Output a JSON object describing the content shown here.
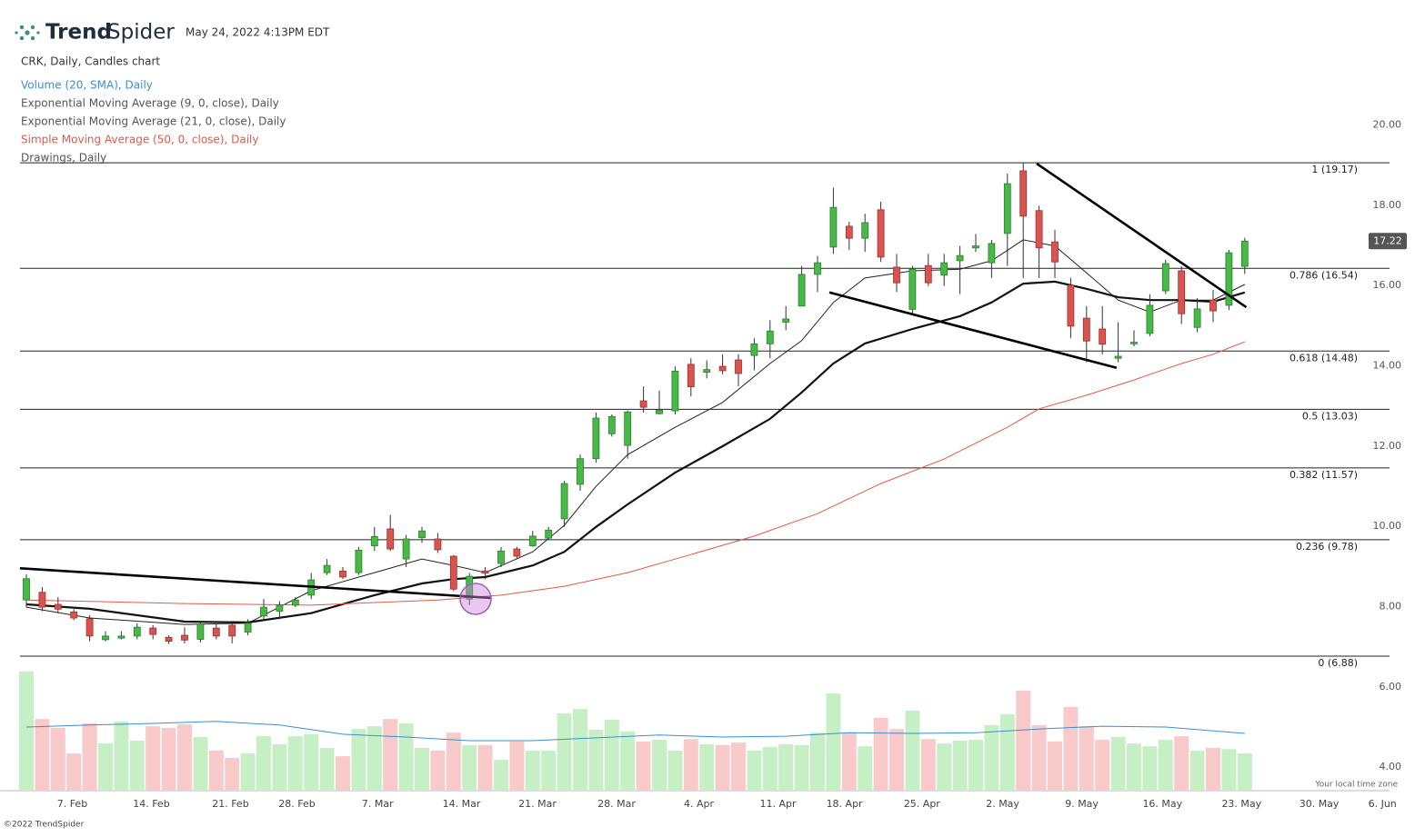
{
  "header": {
    "brand_bold": "Trend",
    "brand_light": "Spider",
    "timestamp": "May 24, 2022 4:13PM EDT",
    "chart_label": "CRK, Daily, Candles chart",
    "timezone_note": "Your local time zone",
    "footer": "©2022 TrendSpider"
  },
  "chart_data": {
    "type": "candlestick",
    "open": [
      8.28,
      8.47,
      8.17,
      7.98,
      7.81,
      7.29,
      7.33,
      7.38,
      7.58,
      7.35,
      7.4,
      7.3,
      7.58,
      7.65,
      7.48,
      7.88,
      8.0,
      8.15,
      8.4,
      8.96,
      9.0,
      8.96,
      9.63,
      10.05,
      9.3,
      9.83,
      9.8,
      9.37,
      8.3,
      9.0,
      9.19,
      9.55,
      9.63,
      9.82,
      10.3,
      11.16,
      11.8,
      12.42,
      12.13,
      13.24,
      12.92,
      12.99,
      14.15,
      13.95,
      14.1,
      14.26,
      14.37,
      14.66,
      15.2,
      15.6,
      16.39,
      17.07,
      17.59,
      17.29,
      18.0,
      16.57,
      15.52,
      16.61,
      16.37,
      16.73,
      17.05,
      16.68,
      17.41,
      18.97,
      17.98,
      17.2,
      16.12,
      15.3,
      15.03,
      14.3,
      14.66,
      14.92,
      15.98,
      16.48,
      15.07,
      15.75,
      15.62,
      16.59
    ],
    "high": [
      8.92,
      8.6,
      8.35,
      8.05,
      7.9,
      7.5,
      7.5,
      7.7,
      7.65,
      7.4,
      7.6,
      7.75,
      7.7,
      7.7,
      7.8,
      8.3,
      8.25,
      8.35,
      8.95,
      9.3,
      9.1,
      9.6,
      10.1,
      10.4,
      9.9,
      10.1,
      9.95,
      9.4,
      8.95,
      9.1,
      9.6,
      9.6,
      10.0,
      10.1,
      11.25,
      11.9,
      12.95,
      12.9,
      13.0,
      13.6,
      13.5,
      14.1,
      14.3,
      14.25,
      14.4,
      14.4,
      14.8,
      15.25,
      15.6,
      16.6,
      16.85,
      18.55,
      17.7,
      17.9,
      18.2,
      16.9,
      16.6,
      16.9,
      16.9,
      17.1,
      17.4,
      17.25,
      18.9,
      19.17,
      18.1,
      17.5,
      16.3,
      15.6,
      15.6,
      15.2,
      15.0,
      15.9,
      16.75,
      16.6,
      15.8,
      16.0,
      17.0,
      17.3
    ],
    "low": [
      8.1,
      8.0,
      7.95,
      7.78,
      7.25,
      7.25,
      7.3,
      7.3,
      7.3,
      7.18,
      7.2,
      7.22,
      7.3,
      7.2,
      7.4,
      7.8,
      7.8,
      8.1,
      8.3,
      8.9,
      8.8,
      8.9,
      9.5,
      9.5,
      9.1,
      9.7,
      9.45,
      8.5,
      8.15,
      8.8,
      9.1,
      9.3,
      9.6,
      9.8,
      10.1,
      11.0,
      11.7,
      12.35,
      11.8,
      12.95,
      12.9,
      12.9,
      13.35,
      13.8,
      13.9,
      13.6,
      14.0,
      14.3,
      15.0,
      15.6,
      15.95,
      16.9,
      17.0,
      16.95,
      16.7,
      15.95,
      15.4,
      16.1,
      16.1,
      15.9,
      16.95,
      16.3,
      16.6,
      16.3,
      16.3,
      16.3,
      14.8,
      14.2,
      14.4,
      14.2,
      14.6,
      14.85,
      15.9,
      15.15,
      14.95,
      15.2,
      15.5,
      16.4
    ],
    "close": [
      8.81,
      8.1,
      8.05,
      7.83,
      7.38,
      7.38,
      7.38,
      7.6,
      7.42,
      7.25,
      7.28,
      7.68,
      7.38,
      7.38,
      7.7,
      8.1,
      8.15,
      8.28,
      8.78,
      9.14,
      8.85,
      9.52,
      9.86,
      9.55,
      9.8,
      10.0,
      9.53,
      8.55,
      8.87,
      8.95,
      9.5,
      9.37,
      9.87,
      10.02,
      11.18,
      11.8,
      12.81,
      12.85,
      12.96,
      13.08,
      13.01,
      13.98,
      13.59,
      14.02,
      13.99,
      13.92,
      14.66,
      14.98,
      15.28,
      16.39,
      16.68,
      18.06,
      17.29,
      17.68,
      16.82,
      16.18,
      16.52,
      16.18,
      16.68,
      16.86,
      17.1,
      17.16,
      18.65,
      17.84,
      17.05,
      16.7,
      15.1,
      14.73,
      14.65,
      14.35,
      14.7,
      15.62,
      16.66,
      15.41,
      15.53,
      15.48,
      16.93,
      17.22
    ],
    "ylim": [
      6.88,
      20.4
    ],
    "yticks": [
      {
        "value": 8,
        "label": "8.00"
      },
      {
        "value": 10,
        "label": "10.00"
      },
      {
        "value": 12,
        "label": "12.00"
      },
      {
        "value": 14,
        "label": "14.00"
      },
      {
        "value": 16,
        "label": "16.00"
      },
      {
        "value": 18,
        "label": "18.00"
      },
      {
        "value": 20,
        "label": "20.00"
      }
    ],
    "xticks": [
      {
        "value": 2.9,
        "label": "7. Feb"
      },
      {
        "value": 7.9,
        "label": "14. Feb"
      },
      {
        "value": 12.9,
        "label": "21. Feb"
      },
      {
        "value": 17.1,
        "label": "28. Feb"
      },
      {
        "value": 22.2,
        "label": "7. Mar"
      },
      {
        "value": 27.5,
        "label": "14. Mar"
      },
      {
        "value": 32.3,
        "label": "21. Mar"
      },
      {
        "value": 37.3,
        "label": "28. Mar"
      },
      {
        "value": 42.5,
        "label": "4. Apr"
      },
      {
        "value": 47.5,
        "label": "11. Apr"
      },
      {
        "value": 51.7,
        "label": "18. Apr"
      },
      {
        "value": 56.6,
        "label": "25. Apr"
      },
      {
        "value": 61.7,
        "label": "2. May"
      },
      {
        "value": 66.7,
        "label": "9. May"
      },
      {
        "value": 71.8,
        "label": "16. May"
      },
      {
        "value": 76.8,
        "label": "23. May"
      },
      {
        "value": 81.7,
        "label": "30. May"
      },
      {
        "value": 85.7,
        "label": "6. Jun"
      }
    ],
    "up_color": "#46b946",
    "down_color": "#d9534f",
    "last_price": 17.22,
    "fib_levels": [
      {
        "value": 19.17,
        "label": "1 (19.17)"
      },
      {
        "value": 16.54,
        "label": "0.786 (16.54)"
      },
      {
        "value": 14.48,
        "label": "0.618 (14.48)"
      },
      {
        "value": 13.03,
        "label": "0.5 (13.03)"
      },
      {
        "value": 11.57,
        "label": "0.382 (11.57)"
      },
      {
        "value": 9.78,
        "label": "0.236 (9.78)"
      },
      {
        "value": 6.88,
        "label": "0 (6.88)"
      }
    ],
    "overlays": [
      {
        "name": "Exponential Moving Average (9, 0, close), Daily",
        "color": "#222222",
        "x": [
          0,
          4,
          10,
          14,
          18,
          22,
          25,
          27,
          29,
          32,
          34,
          36,
          38,
          41,
          44,
          47,
          49,
          51,
          53,
          56,
          59,
          61,
          63,
          65,
          67,
          69,
          71,
          73,
          75,
          77
        ],
        "values": [
          8.1,
          7.83,
          7.67,
          7.7,
          8.51,
          8.96,
          9.3,
          9.14,
          8.96,
          9.48,
          10.14,
          11.11,
          11.9,
          12.58,
          13.2,
          14.17,
          14.74,
          15.69,
          16.3,
          16.48,
          16.52,
          16.73,
          17.25,
          17.1,
          16.43,
          15.75,
          15.45,
          15.75,
          15.75,
          16.14
        ]
      },
      {
        "name": "Exponential Moving Average (21, 0, close), Daily",
        "color": "#111111",
        "x": [
          0,
          4,
          10,
          14,
          18,
          22,
          25,
          27,
          29,
          32,
          34,
          36,
          38,
          41,
          44,
          47,
          49,
          51,
          53,
          56,
          59,
          61,
          63,
          65,
          67,
          69,
          71,
          73,
          75,
          77
        ],
        "values": [
          8.17,
          8.06,
          7.74,
          7.72,
          7.95,
          8.4,
          8.69,
          8.8,
          8.85,
          9.14,
          9.48,
          10.1,
          10.66,
          11.45,
          12.11,
          12.79,
          13.45,
          14.17,
          14.67,
          15.03,
          15.35,
          15.69,
          16.16,
          16.21,
          16.03,
          15.82,
          15.75,
          15.75,
          15.71,
          15.94
        ]
      },
      {
        "name": "Simple Moving Average (50, 0, close), Daily",
        "color": "#e05a4a",
        "x": [
          0,
          10,
          18,
          26,
          30,
          34,
          38,
          42,
          46,
          50,
          54,
          58,
          62,
          64,
          67,
          70,
          73,
          75,
          77
        ],
        "values": [
          8.28,
          8.19,
          8.15,
          8.28,
          8.4,
          8.62,
          8.96,
          9.41,
          9.87,
          10.43,
          11.18,
          11.79,
          12.58,
          13.04,
          13.38,
          13.76,
          14.17,
          14.4,
          14.71
        ]
      }
    ],
    "volume": {
      "name": "Volume (20, SMA), Daily",
      "up_color": "#c6efc6",
      "down_color": "#f8caca",
      "values": [
        6.39,
        5.2,
        4.98,
        4.34,
        5.09,
        4.59,
        5.14,
        4.66,
        5.02,
        4.98,
        5.07,
        4.75,
        4.41,
        4.23,
        4.34,
        4.77,
        4.57,
        4.77,
        4.82,
        4.48,
        4.27,
        4.95,
        5.02,
        5.2,
        5.09,
        4.48,
        4.41,
        4.86,
        4.55,
        4.55,
        4.18,
        4.64,
        4.41,
        4.41,
        5.34,
        5.45,
        4.93,
        5.18,
        4.89,
        4.64,
        4.68,
        4.41,
        4.7,
        4.57,
        4.55,
        4.61,
        4.41,
        4.5,
        4.57,
        4.55,
        4.86,
        5.84,
        4.86,
        4.52,
        5.23,
        4.95,
        5.41,
        4.7,
        4.59,
        4.66,
        4.68,
        5.05,
        5.32,
        5.91,
        5.05,
        4.64,
        5.5,
        5.02,
        4.68,
        4.75,
        4.59,
        4.52,
        4.68,
        4.77,
        4.41,
        4.48,
        4.45,
        4.34
      ],
      "ylim": [
        3.41,
        6.59
      ],
      "yticks": [
        {
          "value": 4,
          "label": "4.00"
        },
        {
          "value": 6,
          "label": "6.00"
        }
      ],
      "sma": {
        "color": "#3a8fd0",
        "x": [
          0,
          4,
          8,
          12,
          16,
          20,
          24,
          28,
          32,
          36,
          40,
          44,
          48,
          52,
          56,
          60,
          64,
          68,
          72,
          77
        ],
        "values": [
          5.0,
          5.05,
          5.09,
          5.14,
          5.05,
          4.82,
          4.75,
          4.66,
          4.66,
          4.73,
          4.8,
          4.75,
          4.77,
          4.86,
          4.84,
          4.86,
          4.95,
          5.02,
          5.0,
          4.84
        ]
      }
    },
    "drawings": {
      "name": "Drawings, Daily",
      "color": "#000000",
      "lines": [
        {
          "x": [
            -0.4,
            29.4
          ],
          "y": [
            9.07,
            8.33
          ]
        },
        {
          "x": [
            50.75,
            68.9
          ],
          "y": [
            15.94,
            14.06
          ]
        },
        {
          "x": [
            63.85,
            77.1
          ],
          "y": [
            19.15,
            15.57
          ]
        }
      ]
    }
  }
}
